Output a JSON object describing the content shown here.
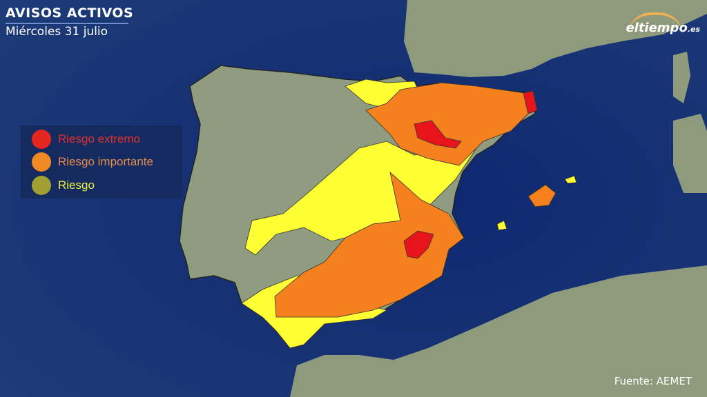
{
  "header": {
    "title": "AVISOS ACTIVOS",
    "date": "Miércoles 31 julio"
  },
  "legend": {
    "items": [
      {
        "label": "Riesgo extremo",
        "color": "#e52620",
        "text_color": "#e23030"
      },
      {
        "label": "Riesgo importante",
        "color": "#f08a24",
        "text_color": "#ea8a4a"
      },
      {
        "label": "Riesgo",
        "color": "#a0a032",
        "text_color": "#e8f040"
      }
    ]
  },
  "logo": {
    "text": "eltiempo",
    "suffix": ".es"
  },
  "footer": {
    "source": "Fuente: AEMET"
  },
  "colors": {
    "sea": "#16306a",
    "land": "#8f9c80",
    "extreme": "#e8141c",
    "important": "#f5801e",
    "risk": "#ffff33"
  }
}
